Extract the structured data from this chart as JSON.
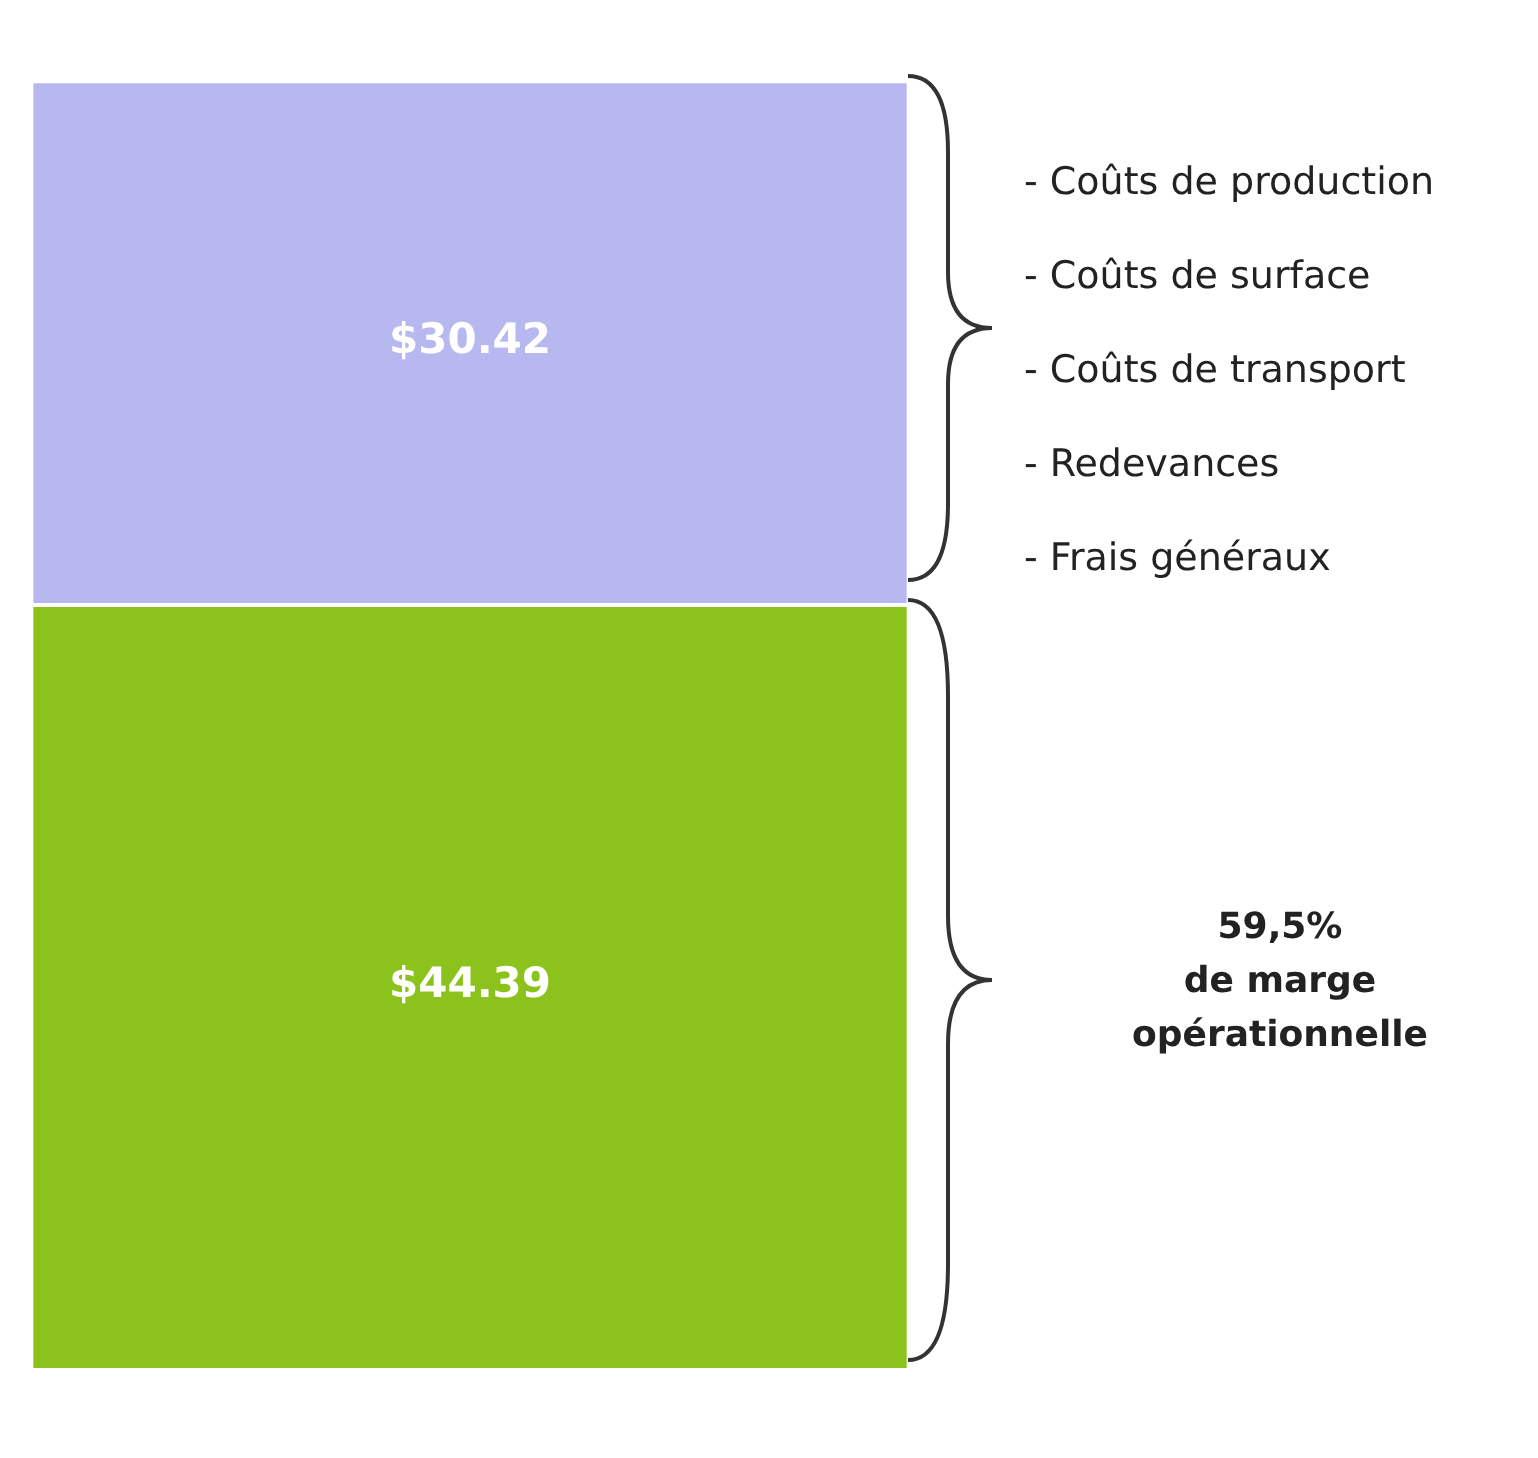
{
  "chart_data": {
    "type": "bar",
    "stacked": true,
    "categories": [
      null
    ],
    "series": [
      {
        "color": "#8cc21c",
        "values": [
          44.39
        ],
        "value_labels": [
          "$44.39"
        ]
      },
      {
        "color": "#b8b8f0",
        "values": [
          30.42
        ],
        "value_labels": [
          "$30.42"
        ]
      }
    ],
    "annotations": [
      "- Coûts de production",
      "- Coûts de surface",
      "- Coûts de transport",
      "- Redevances",
      "- Frais généraux",
      "59,5%\nde marge\nopérationnelle"
    ]
  }
}
